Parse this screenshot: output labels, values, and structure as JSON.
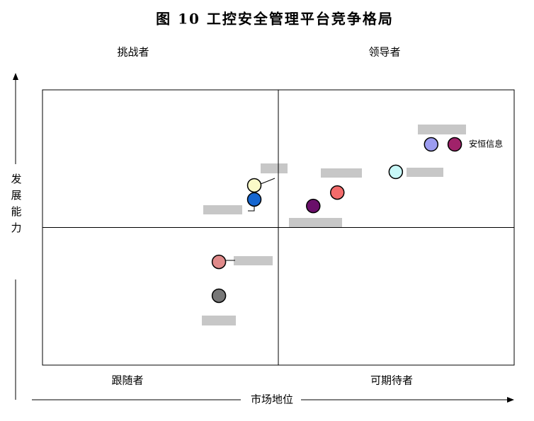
{
  "chart_data": {
    "type": "scatter",
    "title": "图 10  工控安全管理平台竞争格局",
    "xlabel": "市场地位",
    "ylabel": "发展能力",
    "quadrants": [
      "挑战者",
      "领导者",
      "跟随者",
      "可期待者"
    ],
    "xlim": [
      0,
      100
    ],
    "ylim": [
      0,
      100
    ],
    "series": [
      {
        "x": [
          82.4,
          87.4,
          74.9,
          62.5,
          57.4,
          44.9,
          44.9,
          37.4,
          37.4
        ],
        "values": [
          80.2,
          80.2,
          70.2,
          62.7,
          57.8,
          65.3,
          60.2,
          37.5,
          25.2
        ],
        "colors": [
          "#9c9cf0",
          "#a0226a",
          "#c8f8f8",
          "#f26b6b",
          "#6a0f6a",
          "#fafac8",
          "#1566d0",
          "#e08a8a",
          "#777777"
        ],
        "labels": [
          null,
          "安恒信息",
          null,
          null,
          null,
          null,
          null,
          null,
          null
        ]
      }
    ]
  }
}
